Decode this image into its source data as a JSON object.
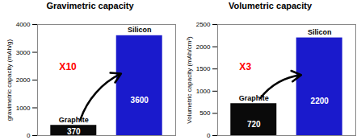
{
  "chart_data": [
    {
      "type": "bar",
      "title": "Gravimetric capacity",
      "ylabel": "gravimetric capacity (mAh/g)",
      "categories": [
        "Graphite",
        "Silicon"
      ],
      "values": [
        370,
        3600
      ],
      "colors": [
        "#0a0a0a",
        "#1a1acc"
      ],
      "ylim": [
        0,
        4000
      ],
      "yticks": [
        0,
        1000,
        2000,
        3000,
        4000
      ],
      "data_labels": true,
      "tick_labels": "y",
      "annotations": [
        {
          "text": "X10",
          "color": "#ff0000"
        }
      ]
    },
    {
      "type": "bar",
      "title": "Volumetric capacity",
      "ylabel": "Volumetric capacity (mAh/cm³)",
      "categories": [
        "Graphite",
        "Silicon"
      ],
      "values": [
        720,
        2200
      ],
      "colors": [
        "#0a0a0a",
        "#1a1acc"
      ],
      "ylim": [
        0,
        2500
      ],
      "yticks": [
        0,
        500,
        1000,
        1500,
        2000,
        2500
      ],
      "data_labels": true,
      "tick_labels": "y",
      "annotations": [
        {
          "text": "X3",
          "color": "#ff0000"
        }
      ]
    }
  ]
}
